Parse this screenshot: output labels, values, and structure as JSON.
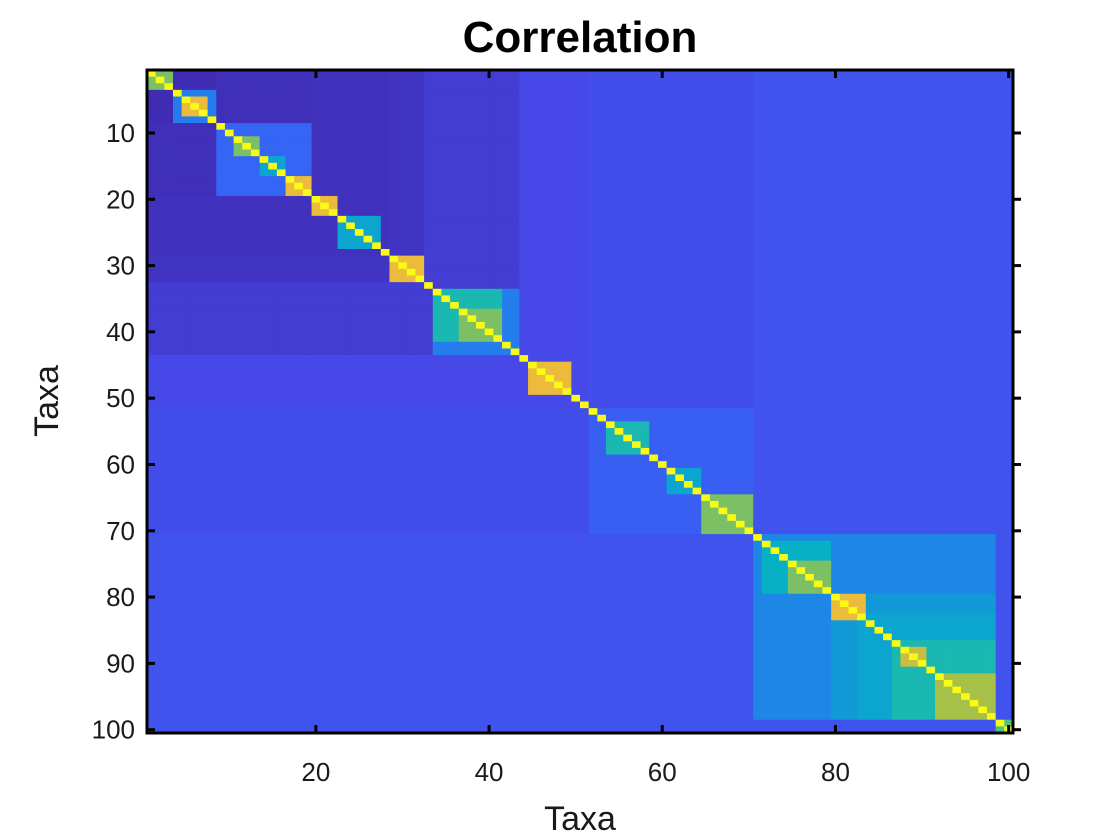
{
  "chart_data": {
    "type": "heatmap",
    "title": "Correlation",
    "xlabel": "Taxa",
    "ylabel": "Taxa",
    "n": 100,
    "xlim": [
      0.5,
      100.5
    ],
    "ylim": [
      0.5,
      100.5
    ],
    "y_direction": "reverse",
    "x_ticks": [
      20,
      40,
      60,
      80,
      100
    ],
    "y_ticks": [
      10,
      20,
      30,
      40,
      50,
      60,
      70,
      80,
      90,
      100
    ],
    "colormap": "parula",
    "color_range": [
      0,
      1
    ],
    "grid": false,
    "legend": "none",
    "background_correlation": [
      {
        "cols": [
          1,
          8
        ],
        "value": 0.02
      },
      {
        "cols": [
          9,
          19
        ],
        "value": 0.03
      },
      {
        "cols": [
          20,
          28
        ],
        "value": 0.04
      },
      {
        "cols": [
          29,
          32
        ],
        "value": 0.05
      },
      {
        "cols": [
          33,
          43
        ],
        "value": 0.08
      },
      {
        "cols": [
          44,
          51
        ],
        "value": 0.12
      },
      {
        "cols": [
          52,
          70
        ],
        "value": 0.14
      },
      {
        "cols": [
          71,
          100
        ],
        "value": 0.16
      }
    ],
    "cluster_blocks": [
      {
        "range": [
          4,
          8
        ],
        "value": 0.3
      },
      {
        "range": [
          9,
          19
        ],
        "value": 0.22
      },
      {
        "range": [
          34,
          43
        ],
        "value": 0.3
      },
      {
        "range": [
          52,
          70
        ],
        "value": 0.2
      },
      {
        "range": [
          71,
          98
        ],
        "value": 0.33
      },
      {
        "range": [
          80,
          98
        ],
        "value": 0.4
      }
    ],
    "diagonal_blocks": [
      {
        "range": [
          1,
          3
        ],
        "value": 0.7
      },
      {
        "range": [
          5,
          7
        ],
        "value": 0.85
      },
      {
        "range": [
          11,
          13
        ],
        "value": 0.7
      },
      {
        "range": [
          14,
          16
        ],
        "value": 0.45
      },
      {
        "range": [
          17,
          19
        ],
        "value": 0.85
      },
      {
        "range": [
          20,
          22
        ],
        "value": 0.85
      },
      {
        "range": [
          23,
          27
        ],
        "value": 0.45
      },
      {
        "range": [
          29,
          32
        ],
        "value": 0.85
      },
      {
        "range": [
          34,
          41
        ],
        "value": 0.55
      },
      {
        "range": [
          37,
          41
        ],
        "value": 0.7
      },
      {
        "range": [
          45,
          49
        ],
        "value": 0.85
      },
      {
        "range": [
          54,
          58
        ],
        "value": 0.55
      },
      {
        "range": [
          61,
          64
        ],
        "value": 0.45
      },
      {
        "range": [
          65,
          70
        ],
        "value": 0.7
      },
      {
        "range": [
          72,
          79
        ],
        "value": 0.5
      },
      {
        "range": [
          75,
          79
        ],
        "value": 0.7
      },
      {
        "range": [
          80,
          83
        ],
        "value": 0.85
      },
      {
        "range": [
          83,
          98
        ],
        "value": 0.45
      },
      {
        "range": [
          88,
          90
        ],
        "value": 0.8
      },
      {
        "range": [
          87,
          98
        ],
        "value": 0.55
      },
      {
        "range": [
          92,
          98
        ],
        "value": 0.75
      },
      {
        "range": [
          99,
          100
        ],
        "value": 0.65
      }
    ],
    "diagonal_value": 1.0
  }
}
